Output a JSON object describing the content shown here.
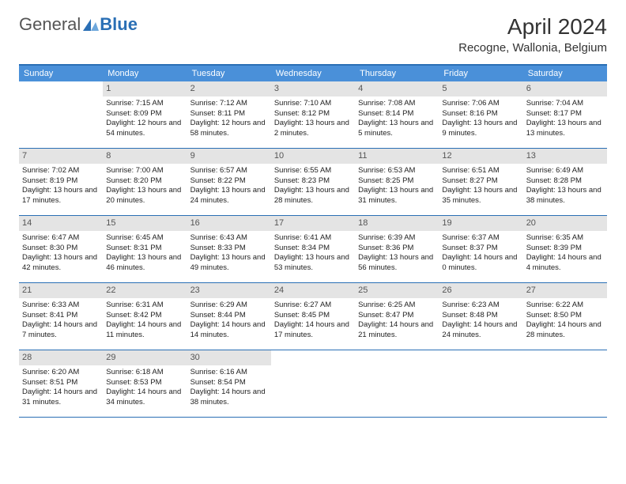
{
  "logo": {
    "first": "General",
    "second": "Blue"
  },
  "title": "April 2024",
  "location": "Recogne, Wallonia, Belgium",
  "colors": {
    "header_bg": "#4a90d9",
    "border": "#2a6fb5",
    "daynum_bg": "#e4e4e4",
    "text": "#222222",
    "background": "#ffffff"
  },
  "dayNames": [
    "Sunday",
    "Monday",
    "Tuesday",
    "Wednesday",
    "Thursday",
    "Friday",
    "Saturday"
  ],
  "weeks": [
    [
      {
        "n": "",
        "empty": true
      },
      {
        "n": "1",
        "sunrise": "7:15 AM",
        "sunset": "8:09 PM",
        "daylight": "12 hours and 54 minutes."
      },
      {
        "n": "2",
        "sunrise": "7:12 AM",
        "sunset": "8:11 PM",
        "daylight": "12 hours and 58 minutes."
      },
      {
        "n": "3",
        "sunrise": "7:10 AM",
        "sunset": "8:12 PM",
        "daylight": "13 hours and 2 minutes."
      },
      {
        "n": "4",
        "sunrise": "7:08 AM",
        "sunset": "8:14 PM",
        "daylight": "13 hours and 5 minutes."
      },
      {
        "n": "5",
        "sunrise": "7:06 AM",
        "sunset": "8:16 PM",
        "daylight": "13 hours and 9 minutes."
      },
      {
        "n": "6",
        "sunrise": "7:04 AM",
        "sunset": "8:17 PM",
        "daylight": "13 hours and 13 minutes."
      }
    ],
    [
      {
        "n": "7",
        "sunrise": "7:02 AM",
        "sunset": "8:19 PM",
        "daylight": "13 hours and 17 minutes."
      },
      {
        "n": "8",
        "sunrise": "7:00 AM",
        "sunset": "8:20 PM",
        "daylight": "13 hours and 20 minutes."
      },
      {
        "n": "9",
        "sunrise": "6:57 AM",
        "sunset": "8:22 PM",
        "daylight": "13 hours and 24 minutes."
      },
      {
        "n": "10",
        "sunrise": "6:55 AM",
        "sunset": "8:23 PM",
        "daylight": "13 hours and 28 minutes."
      },
      {
        "n": "11",
        "sunrise": "6:53 AM",
        "sunset": "8:25 PM",
        "daylight": "13 hours and 31 minutes."
      },
      {
        "n": "12",
        "sunrise": "6:51 AM",
        "sunset": "8:27 PM",
        "daylight": "13 hours and 35 minutes."
      },
      {
        "n": "13",
        "sunrise": "6:49 AM",
        "sunset": "8:28 PM",
        "daylight": "13 hours and 38 minutes."
      }
    ],
    [
      {
        "n": "14",
        "sunrise": "6:47 AM",
        "sunset": "8:30 PM",
        "daylight": "13 hours and 42 minutes."
      },
      {
        "n": "15",
        "sunrise": "6:45 AM",
        "sunset": "8:31 PM",
        "daylight": "13 hours and 46 minutes."
      },
      {
        "n": "16",
        "sunrise": "6:43 AM",
        "sunset": "8:33 PM",
        "daylight": "13 hours and 49 minutes."
      },
      {
        "n": "17",
        "sunrise": "6:41 AM",
        "sunset": "8:34 PM",
        "daylight": "13 hours and 53 minutes."
      },
      {
        "n": "18",
        "sunrise": "6:39 AM",
        "sunset": "8:36 PM",
        "daylight": "13 hours and 56 minutes."
      },
      {
        "n": "19",
        "sunrise": "6:37 AM",
        "sunset": "8:37 PM",
        "daylight": "14 hours and 0 minutes."
      },
      {
        "n": "20",
        "sunrise": "6:35 AM",
        "sunset": "8:39 PM",
        "daylight": "14 hours and 4 minutes."
      }
    ],
    [
      {
        "n": "21",
        "sunrise": "6:33 AM",
        "sunset": "8:41 PM",
        "daylight": "14 hours and 7 minutes."
      },
      {
        "n": "22",
        "sunrise": "6:31 AM",
        "sunset": "8:42 PM",
        "daylight": "14 hours and 11 minutes."
      },
      {
        "n": "23",
        "sunrise": "6:29 AM",
        "sunset": "8:44 PM",
        "daylight": "14 hours and 14 minutes."
      },
      {
        "n": "24",
        "sunrise": "6:27 AM",
        "sunset": "8:45 PM",
        "daylight": "14 hours and 17 minutes."
      },
      {
        "n": "25",
        "sunrise": "6:25 AM",
        "sunset": "8:47 PM",
        "daylight": "14 hours and 21 minutes."
      },
      {
        "n": "26",
        "sunrise": "6:23 AM",
        "sunset": "8:48 PM",
        "daylight": "14 hours and 24 minutes."
      },
      {
        "n": "27",
        "sunrise": "6:22 AM",
        "sunset": "8:50 PM",
        "daylight": "14 hours and 28 minutes."
      }
    ],
    [
      {
        "n": "28",
        "sunrise": "6:20 AM",
        "sunset": "8:51 PM",
        "daylight": "14 hours and 31 minutes."
      },
      {
        "n": "29",
        "sunrise": "6:18 AM",
        "sunset": "8:53 PM",
        "daylight": "14 hours and 34 minutes."
      },
      {
        "n": "30",
        "sunrise": "6:16 AM",
        "sunset": "8:54 PM",
        "daylight": "14 hours and 38 minutes."
      },
      {
        "n": "",
        "empty": true
      },
      {
        "n": "",
        "empty": true
      },
      {
        "n": "",
        "empty": true
      },
      {
        "n": "",
        "empty": true
      }
    ]
  ],
  "labels": {
    "sunrise": "Sunrise:",
    "sunset": "Sunset:",
    "daylight": "Daylight:"
  }
}
